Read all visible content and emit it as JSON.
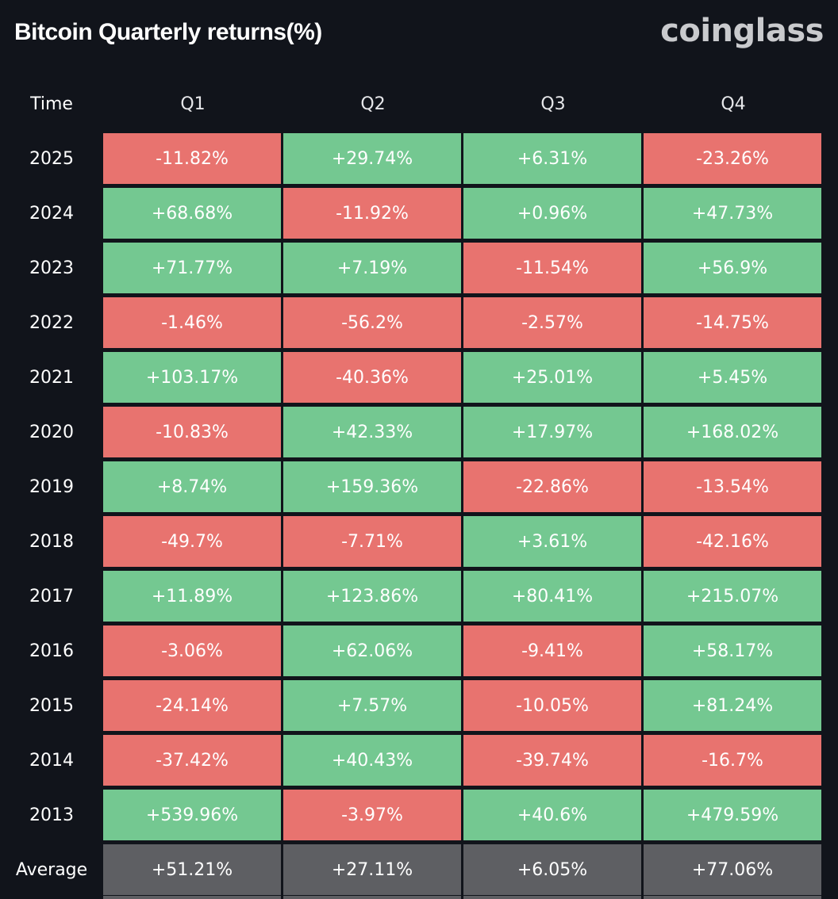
{
  "title": "Bitcoin Quarterly returns(%)",
  "logo_text": "coinglass",
  "colors": {
    "background": "#11141b",
    "positive": "#74c891",
    "negative": "#e8736f",
    "average": "#5e5f63"
  },
  "chart_data": {
    "type": "table",
    "title": "Bitcoin Quarterly returns(%)",
    "columns": [
      "Time",
      "Q1",
      "Q2",
      "Q3",
      "Q4"
    ],
    "rows": [
      {
        "label": "2025",
        "values": [
          "-11.82%",
          "+29.74%",
          "+6.31%",
          "-23.26%"
        ]
      },
      {
        "label": "2024",
        "values": [
          "+68.68%",
          "-11.92%",
          "+0.96%",
          "+47.73%"
        ]
      },
      {
        "label": "2023",
        "values": [
          "+71.77%",
          "+7.19%",
          "-11.54%",
          "+56.9%"
        ]
      },
      {
        "label": "2022",
        "values": [
          "-1.46%",
          "-56.2%",
          "-2.57%",
          "-14.75%"
        ]
      },
      {
        "label": "2021",
        "values": [
          "+103.17%",
          "-40.36%",
          "+25.01%",
          "+5.45%"
        ]
      },
      {
        "label": "2020",
        "values": [
          "-10.83%",
          "+42.33%",
          "+17.97%",
          "+168.02%"
        ]
      },
      {
        "label": "2019",
        "values": [
          "+8.74%",
          "+159.36%",
          "-22.86%",
          "-13.54%"
        ]
      },
      {
        "label": "2018",
        "values": [
          "-49.7%",
          "-7.71%",
          "+3.61%",
          "-42.16%"
        ]
      },
      {
        "label": "2017",
        "values": [
          "+11.89%",
          "+123.86%",
          "+80.41%",
          "+215.07%"
        ]
      },
      {
        "label": "2016",
        "values": [
          "-3.06%",
          "+62.06%",
          "-9.41%",
          "+58.17%"
        ]
      },
      {
        "label": "2015",
        "values": [
          "-24.14%",
          "+7.57%",
          "-10.05%",
          "+81.24%"
        ]
      },
      {
        "label": "2014",
        "values": [
          "-37.42%",
          "+40.43%",
          "-39.74%",
          "-16.7%"
        ]
      },
      {
        "label": "2013",
        "values": [
          "+539.96%",
          "-3.97%",
          "+40.6%",
          "+479.59%"
        ]
      }
    ],
    "average": {
      "label": "Average",
      "values": [
        "+51.21%",
        "+27.11%",
        "+6.05%",
        "+77.06%"
      ]
    }
  }
}
